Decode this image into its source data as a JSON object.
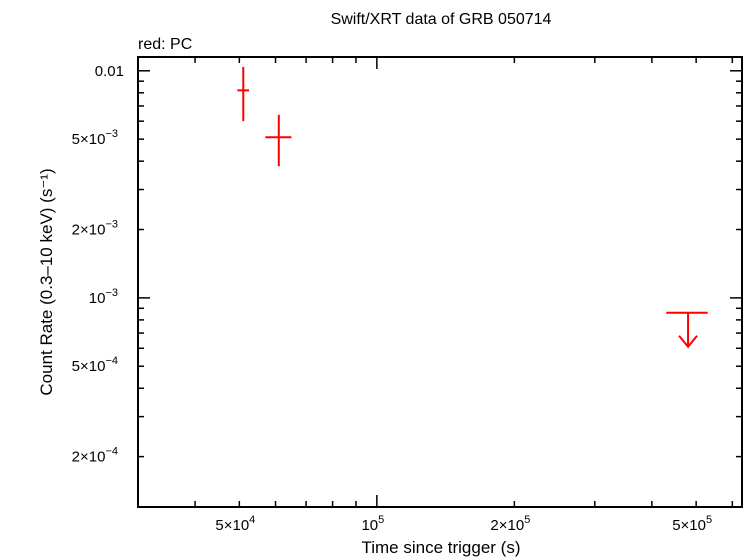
{
  "chart_data": {
    "type": "scatter",
    "title": "Swift/XRT data of GRB 050714",
    "subtitle": "red: PC",
    "xlabel": "Time since trigger (s)",
    "ylabel": "Count Rate (0.3–10 keV) (s⁻¹)",
    "x_scale": "log",
    "y_scale": "log",
    "xlim": [
      30000,
      630000
    ],
    "ylim": [
      0.00012,
      0.0115
    ],
    "x_ticks": [
      {
        "value": 50000,
        "mant": "5×10",
        "exp": "4"
      },
      {
        "value": 100000,
        "mant": "10",
        "exp": "5"
      },
      {
        "value": 200000,
        "mant": "2×10",
        "exp": "5"
      },
      {
        "value": 500000,
        "mant": "5×10",
        "exp": "5"
      }
    ],
    "y_ticks": [
      {
        "value": 0.01,
        "mant": "0.01",
        "exp": ""
      },
      {
        "value": 0.005,
        "mant": "5×10",
        "exp": "−3"
      },
      {
        "value": 0.002,
        "mant": "2×10",
        "exp": "−3"
      },
      {
        "value": 0.001,
        "mant": "10",
        "exp": "−3"
      },
      {
        "value": 0.0005,
        "mant": "5×10",
        "exp": "−4"
      },
      {
        "value": 0.0002,
        "mant": "2×10",
        "exp": "−4"
      }
    ],
    "grid": false,
    "series": [
      {
        "name": "PC",
        "color": "#ff0000",
        "points": [
          {
            "x": 51000,
            "x_lo": 49500,
            "x_hi": 52500,
            "y": 0.0082,
            "y_lo": 0.006,
            "y_hi": 0.0104
          },
          {
            "x": 61000,
            "x_lo": 57000,
            "x_hi": 65000,
            "y": 0.0051,
            "y_lo": 0.0038,
            "y_hi": 0.0064
          }
        ],
        "upper_limits": [
          {
            "x": 480000,
            "x_lo": 430000,
            "x_hi": 530000,
            "y": 0.00086
          }
        ]
      }
    ]
  }
}
